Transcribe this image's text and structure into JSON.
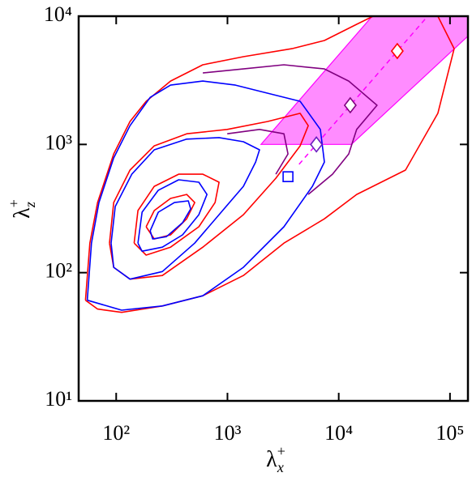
{
  "chart_data": {
    "type": "contour",
    "xlabel": {
      "base": "λ",
      "sub": "x",
      "sup": "+"
    },
    "ylabel": {
      "base": "λ",
      "sub": "z",
      "sup": "+"
    },
    "xscale": "log",
    "yscale": "log",
    "xlim": [
      46,
      145000
    ],
    "ylim": [
      10,
      10000
    ],
    "xticks": [
      {
        "value": 100,
        "label": "10²"
      },
      {
        "value": 1000,
        "label": "10³"
      },
      {
        "value": 10000,
        "label": "10⁴"
      },
      {
        "value": 100000,
        "label": "10⁵"
      }
    ],
    "yticks": [
      {
        "value": 10,
        "label": "10¹"
      },
      {
        "value": 100,
        "label": "10²"
      },
      {
        "value": 1000,
        "label": "10³"
      },
      {
        "value": 10000,
        "label": "10⁴"
      }
    ],
    "region": {
      "color": "#ff00ff",
      "x": [
        2000,
        20000,
        145000,
        145000,
        13000
      ],
      "y": [
        1000,
        10000,
        10000,
        7000,
        1000
      ]
    },
    "dashed_line": {
      "color": "#ff00ff",
      "x": [
        4400,
        63000
      ],
      "y": [
        700,
        10000
      ]
    },
    "series": [
      {
        "color": "#ff0000",
        "x": [
          53,
          58,
          68,
          95,
          133,
          186,
          308,
          601,
          1390,
          3800,
          7430,
          14500,
          20400,
          77800,
          109000,
          77800,
          39800,
          14500,
          7430,
          3220,
          1390,
          601,
          260,
          112,
          68,
          53
        ],
        "y": [
          61,
          170,
          352,
          843,
          1510,
          2170,
          3120,
          4180,
          4830,
          5580,
          6460,
          8650,
          10000,
          10000,
          5580,
          1750,
          631,
          407,
          263,
          170,
          95,
          66,
          55,
          49,
          52,
          61
        ]
      },
      {
        "color": "#0000ff",
        "x": [
          55,
          60,
          70,
          95,
          133,
          202,
          308,
          601,
          1180,
          2300,
          4500,
          6840,
          7430,
          5800,
          3220,
          1390,
          601,
          260,
          112,
          55
        ],
        "y": [
          61,
          170,
          352,
          785,
          1400,
          2330,
          2900,
          3120,
          2900,
          2510,
          2170,
          1310,
          729,
          471,
          228,
          110,
          66,
          55,
          51,
          61
        ]
      },
      {
        "color": "#800080",
        "x": [
          601,
          1390,
          3220,
          7430,
          12300,
          22100,
          14500,
          12300,
          8800,
          5320
        ],
        "y": [
          3610,
          3880,
          4180,
          3880,
          3120,
          2020,
          1310,
          843,
          586,
          407
        ]
      },
      {
        "color": "#ff0000",
        "x": [
          87,
          95,
          133,
          220,
          430,
          995,
          2300,
          4500,
          5320,
          4500,
          2720,
          1390,
          601,
          260,
          133,
          95,
          87
        ],
        "y": [
          170,
          352,
          631,
          975,
          1210,
          1310,
          1510,
          1750,
          1400,
          975,
          545,
          283,
          158,
          95,
          89,
          110,
          170
        ]
      },
      {
        "color": "#0000ff",
        "x": [
          90,
          98,
          138,
          220,
          430,
          841,
          1390,
          1940,
          1790,
          1390,
          841,
          508,
          260,
          133,
          95,
          90
        ],
        "y": [
          170,
          328,
          586,
          907,
          1100,
          1130,
          1050,
          907,
          729,
          471,
          283,
          170,
          102,
          89,
          110,
          170
        ]
      },
      {
        "color": "#800080",
        "x": [
          995,
          1940,
          3220,
          3500,
          2720
        ],
        "y": [
          1210,
          1310,
          1210,
          843,
          586
        ]
      },
      {
        "color": "#ff0000",
        "x": [
          145,
          157,
          220,
          364,
          601,
          841,
          774,
          553,
          308,
          186,
          145
        ],
        "y": [
          170,
          305,
          471,
          586,
          586,
          507,
          352,
          228,
          158,
          137,
          170
        ]
      },
      {
        "color": "#0000ff",
        "x": [
          157,
          171,
          239,
          364,
          553,
          654,
          553,
          395,
          260,
          171,
          157
        ],
        "y": [
          170,
          296,
          439,
          530,
          507,
          407,
          283,
          197,
          158,
          147,
          170
        ]
      },
      {
        "color": "#ff0000",
        "x": [
          186,
          220,
          308,
          430,
          508,
          430,
          308,
          220,
          186
        ],
        "y": [
          228,
          305,
          379,
          407,
          352,
          263,
          197,
          183,
          228
        ]
      },
      {
        "color": "#0000ff",
        "x": [
          202,
          239,
          334,
          445,
          467,
          395,
          283,
          213,
          202
        ],
        "y": [
          212,
          296,
          352,
          363,
          314,
          245,
          191,
          183,
          212
        ]
      }
    ],
    "markers": [
      {
        "shape": "square",
        "color": "#0000ff",
        "x": 3500,
        "y": 560
      },
      {
        "shape": "diamond",
        "color": "#6a1fbf",
        "x": 6300,
        "y": 1000
      },
      {
        "shape": "diamond",
        "color": "#800080",
        "x": 12700,
        "y": 2020
      },
      {
        "shape": "diamond",
        "color": "#ff0000",
        "x": 33600,
        "y": 5350
      }
    ]
  }
}
